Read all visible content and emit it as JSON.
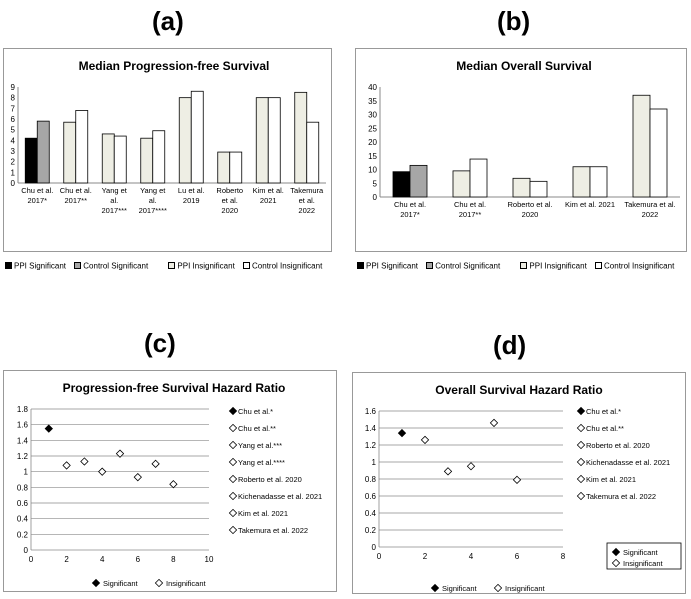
{
  "panels": {
    "a": {
      "letter": "(a)"
    },
    "b": {
      "letter": "(b)"
    },
    "c": {
      "letter": "(c)"
    },
    "d": {
      "letter": "(d)"
    }
  },
  "bar_legend": {
    "items": [
      {
        "label": "PPI Significant",
        "color": "#000000"
      },
      {
        "label": "Control Significant",
        "color": "#a6a6a6"
      },
      {
        "label": "PPI Insignificant",
        "color": "#eeeee4"
      },
      {
        "label": "Control Insignificant",
        "color": "#ffffff"
      }
    ]
  },
  "scatter_legend": {
    "significant": "Significant",
    "insignificant": "Insignificant"
  },
  "chart_data": [
    {
      "type": "bar",
      "title": "Median Progression-free Survival",
      "categories": [
        [
          "Chu et al.",
          "2017*"
        ],
        [
          "Chu et al.",
          "2017**"
        ],
        [
          "Yang et",
          "al.",
          "2017***"
        ],
        [
          "Yang et",
          "al.",
          "2017****"
        ],
        [
          "Lu et al.",
          "2019"
        ],
        [
          "Roberto",
          "et al.",
          "2020"
        ],
        [
          "Kim et al.",
          "2021"
        ],
        [
          "Takemura",
          "et al.",
          "2022"
        ]
      ],
      "series": [
        {
          "name": "PPI",
          "values": [
            4.2,
            5.7,
            4.6,
            4.2,
            8.0,
            2.9,
            8.0,
            8.5
          ]
        },
        {
          "name": "Control",
          "values": [
            5.8,
            6.8,
            4.4,
            4.9,
            8.6,
            2.9,
            8.0,
            5.7
          ]
        }
      ],
      "significant": [
        true,
        false,
        false,
        false,
        false,
        false,
        false,
        false
      ],
      "ylim": [
        0,
        9
      ],
      "yticks": [
        "0",
        "1",
        "2",
        "3",
        "4",
        "5",
        "6",
        "7",
        "8",
        "9"
      ],
      "grid": false
    },
    {
      "type": "bar",
      "title": "Median Overall Survival",
      "categories": [
        [
          "Chu et al.",
          "2017*"
        ],
        [
          "Chu et al.",
          "2017**"
        ],
        [
          "Roberto et al.",
          "2020"
        ],
        [
          "Kim et al. 2021"
        ],
        [
          "Takemura et al.",
          "2022"
        ]
      ],
      "series": [
        {
          "name": "PPI",
          "values": [
            9.2,
            9.5,
            6.8,
            11.0,
            37.0
          ]
        },
        {
          "name": "Control",
          "values": [
            11.5,
            13.8,
            5.7,
            11.0,
            32.0
          ]
        }
      ],
      "significant": [
        true,
        false,
        false,
        false,
        false
      ],
      "ylim": [
        0,
        40
      ],
      "yticks": [
        "0",
        "5",
        "10",
        "15",
        "20",
        "25",
        "30",
        "35",
        "40"
      ],
      "grid": false
    },
    {
      "type": "scatter",
      "title": "Progression-free Survival Hazard Ratio",
      "points": [
        {
          "label": "Chu et al.*",
          "x": 1,
          "y": 1.55,
          "significant": true
        },
        {
          "label": "Chu et al.**",
          "x": 2,
          "y": 1.08,
          "significant": false
        },
        {
          "label": "Yang et al.***",
          "x": 3,
          "y": 1.13,
          "significant": false
        },
        {
          "label": "Yang et al.****",
          "x": 4,
          "y": 1.0,
          "significant": false
        },
        {
          "label": "Roberto et al. 2020",
          "x": 5,
          "y": 1.23,
          "significant": false
        },
        {
          "label": "Kichenadasse et al. 2021",
          "x": 6,
          "y": 0.93,
          "significant": false
        },
        {
          "label": "Kim et al. 2021",
          "x": 7,
          "y": 1.1,
          "significant": false
        },
        {
          "label": "Takemura et al. 2022",
          "x": 8,
          "y": 0.84,
          "significant": false
        }
      ],
      "xlim": [
        0,
        10
      ],
      "ylim": [
        0,
        1.8
      ],
      "xticks": [
        "0",
        "2",
        "4",
        "6",
        "8",
        "10"
      ],
      "yticks": [
        "0",
        "0.2",
        "0.4",
        "0.6",
        "0.8",
        "1",
        "1.2",
        "1.4",
        "1.6",
        "1.8"
      ],
      "grid": true,
      "legend": "bottom"
    },
    {
      "type": "scatter",
      "title": "Overall Survival Hazard Ratio",
      "points": [
        {
          "label": "Chu et al.*",
          "x": 1,
          "y": 1.34,
          "significant": true
        },
        {
          "label": "Chu et al.**",
          "x": 2,
          "y": 1.26,
          "significant": false
        },
        {
          "label": "Roberto et al. 2020",
          "x": 3,
          "y": 0.89,
          "significant": false
        },
        {
          "label": "Kichenadasse et al. 2021",
          "x": 4,
          "y": 0.95,
          "significant": false
        },
        {
          "label": "Kim et al. 2021",
          "x": 5,
          "y": 1.46,
          "significant": false
        },
        {
          "label": "Takemura et al. 2022",
          "x": 6,
          "y": 0.79,
          "significant": false
        }
      ],
      "xlim": [
        0,
        8
      ],
      "ylim": [
        0,
        1.6
      ],
      "xticks": [
        "0",
        "2",
        "4",
        "6",
        "8"
      ],
      "yticks": [
        "0",
        "0.2",
        "0.4",
        "0.6",
        "0.8",
        "1",
        "1.2",
        "1.4",
        "1.6"
      ],
      "grid": true,
      "legend": "bottom-right"
    }
  ]
}
